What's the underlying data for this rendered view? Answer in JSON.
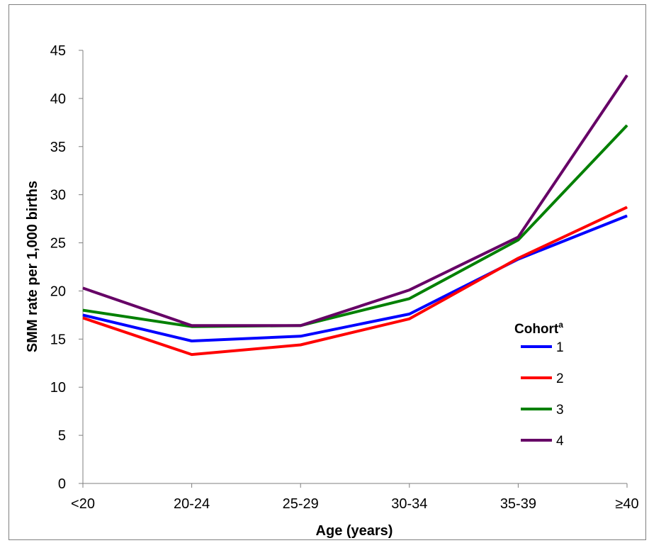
{
  "chart_data": {
    "type": "line",
    "title": "",
    "xlabel": "Age (years)",
    "ylabel": "SMM rate per 1,000 births",
    "categories": [
      "<20",
      "20-24",
      "25-29",
      "30-34",
      "35-39",
      "≥40"
    ],
    "ylim": [
      0,
      45
    ],
    "yticks": [
      0,
      5,
      10,
      15,
      20,
      25,
      30,
      35,
      40,
      45
    ],
    "grid": false,
    "legend": {
      "title": "Cohort",
      "title_superscript": "a",
      "placement": "right"
    },
    "series": [
      {
        "name": "1",
        "color": "#0000ff",
        "values": [
          17.5,
          14.8,
          15.3,
          17.6,
          23.3,
          27.8
        ]
      },
      {
        "name": "2",
        "color": "#ff0000",
        "values": [
          17.2,
          13.4,
          14.4,
          17.1,
          23.4,
          28.7
        ]
      },
      {
        "name": "3",
        "color": "#008000",
        "values": [
          18.0,
          16.3,
          16.4,
          19.2,
          25.3,
          37.2
        ]
      },
      {
        "name": "4",
        "color": "#660066",
        "values": [
          20.3,
          16.4,
          16.4,
          20.1,
          25.6,
          42.4
        ]
      }
    ]
  }
}
